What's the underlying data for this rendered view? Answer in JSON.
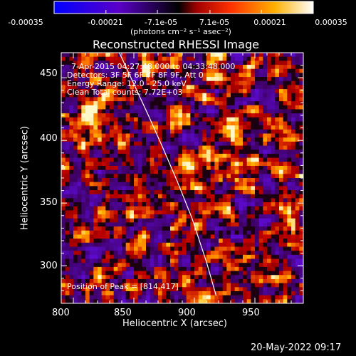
{
  "colorbar": {
    "ticks": [
      "-0.00035",
      "-0.00021",
      "-7.1e-05",
      "7.1e-05",
      "0.00021",
      "0.00035"
    ],
    "tick_values": [
      -0.00035,
      -0.00021,
      -7.1e-05,
      7.1e-05,
      0.00021,
      0.00035
    ],
    "unit_label": "(photons cm⁻² s⁻¹ asec⁻²)",
    "colors": [
      "#0000ff",
      "#6a00d0",
      "#000000",
      "#ff3000",
      "#ffa000",
      "#ffffff"
    ]
  },
  "chart_data": {
    "type": "heatmap",
    "title": "Reconstructed RHESSI Image",
    "xlabel": "Heliocentric X (arcsec)",
    "ylabel": "Heliocentric Y (arcsec)",
    "xlim": [
      790,
      990
    ],
    "ylim": [
      270,
      470
    ],
    "xticks": [
      800,
      850,
      900,
      950
    ],
    "yticks": [
      300,
      350,
      400,
      450
    ],
    "annotations": {
      "time_range": "7-Apr-2015 04:27:48.000 to 04:33:48.000",
      "detectors": "Detectors: 3F 5F 6F 7F 8F 9F, Att 0",
      "energy": "Energy Range: 12.0 - 25.0 keV",
      "clean": "Clean     Total counts: 7.72E+03",
      "peak": "Position of Peak = [814,417]"
    },
    "peak": {
      "x": 814,
      "y": 417
    },
    "limb_curve": {
      "x": [
        838,
        850,
        862,
        874,
        886,
        898,
        910,
        918
      ],
      "y": [
        470,
        445,
        420,
        394,
        367,
        338,
        303,
        276
      ]
    }
  },
  "footer": {
    "date": "20-May-2022 09:17"
  }
}
